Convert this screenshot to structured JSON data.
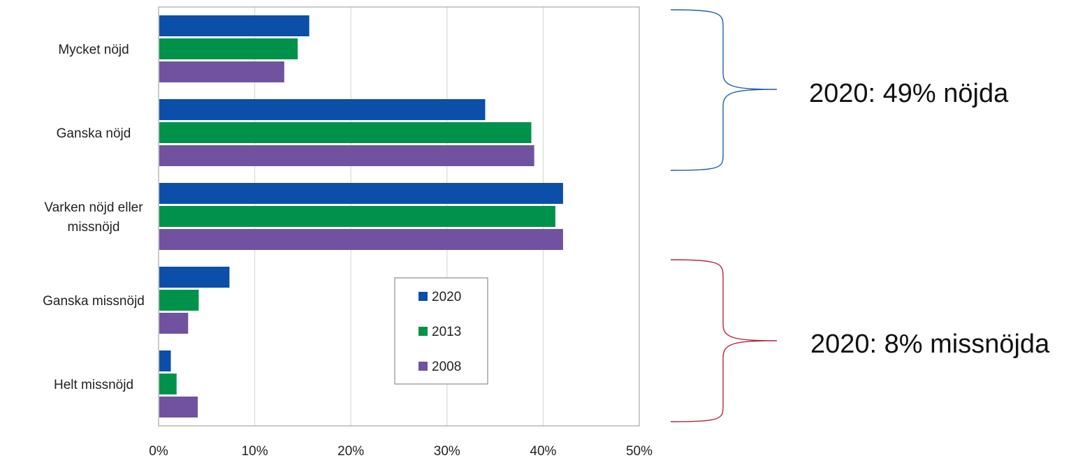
{
  "chart_data": {
    "type": "bar",
    "orientation": "horizontal",
    "categories": [
      "Mycket nöjd",
      "Ganska nöjd",
      "Varken nöjd eller missnöjd",
      "Ganska missnöjd",
      "Helt missnöjd"
    ],
    "category_label_lines": [
      [
        "Mycket nöjd"
      ],
      [
        "Ganska nöjd"
      ],
      [
        "Varken nöjd eller",
        "missnöjd"
      ],
      [
        "Ganska missnöjd"
      ],
      [
        "Helt missnöjd"
      ]
    ],
    "series": [
      {
        "name": "2020",
        "color": "#0B4FA8",
        "values": [
          15.6,
          33.9,
          42.0,
          7.3,
          1.2
        ]
      },
      {
        "name": "2013",
        "color": "#00924A",
        "values": [
          14.4,
          38.7,
          41.2,
          4.1,
          1.8
        ]
      },
      {
        "name": "2008",
        "color": "#7152A0",
        "values": [
          13.0,
          39.0,
          42.0,
          3.0,
          4.0
        ]
      }
    ],
    "xlim": [
      0,
      50
    ],
    "xticks": [
      "0%",
      "10%",
      "20%",
      "30%",
      "40%",
      "50%"
    ],
    "xtick_values": [
      0,
      10,
      20,
      30,
      40,
      50
    ],
    "grid": true,
    "legend_position": "bottom-center",
    "annotations": [
      {
        "text": "2020: 49% nöjda",
        "bracket_color": "#1F5FA8",
        "categories": [
          "Mycket nöjd",
          "Ganska nöjd"
        ]
      },
      {
        "text": "2020: 8% missnöjda",
        "bracket_color": "#B0283F",
        "categories": [
          "Ganska missnöjd",
          "Helt missnöjd"
        ]
      }
    ]
  }
}
